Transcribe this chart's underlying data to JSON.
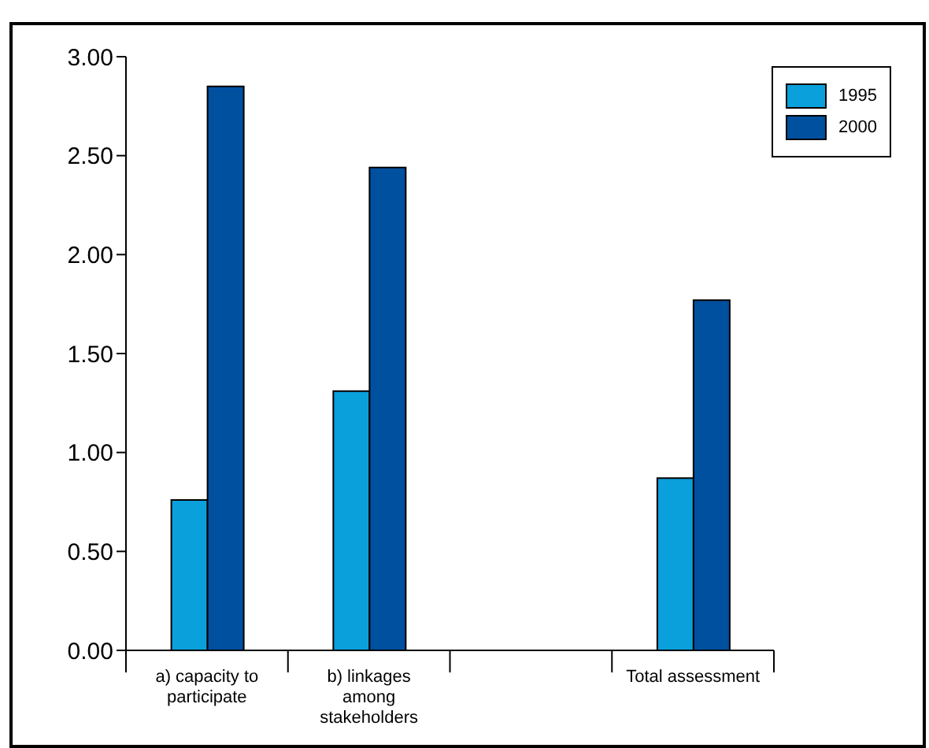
{
  "chart_data": {
    "type": "bar",
    "categories": [
      "a) capacity to participate",
      "b) linkages among stakeholders",
      null,
      "Total assessment"
    ],
    "series": [
      {
        "name": "1995",
        "color": "#0aa0dc",
        "values": [
          0.76,
          1.31,
          null,
          0.87
        ]
      },
      {
        "name": "2000",
        "color": "#0050a0",
        "values": [
          2.85,
          2.44,
          null,
          1.77
        ]
      }
    ],
    "ylim": [
      0,
      3
    ],
    "yticks": [
      {
        "value": 0,
        "label": "0.00"
      },
      {
        "value": 0.5,
        "label": "0.50"
      },
      {
        "value": 1,
        "label": "1.00"
      },
      {
        "value": 1.5,
        "label": "1.50"
      },
      {
        "value": 2,
        "label": "2.00"
      },
      {
        "value": 2.5,
        "label": "2.50"
      },
      {
        "value": 3,
        "label": "3.00"
      }
    ],
    "grid": false,
    "legend": "top right"
  }
}
